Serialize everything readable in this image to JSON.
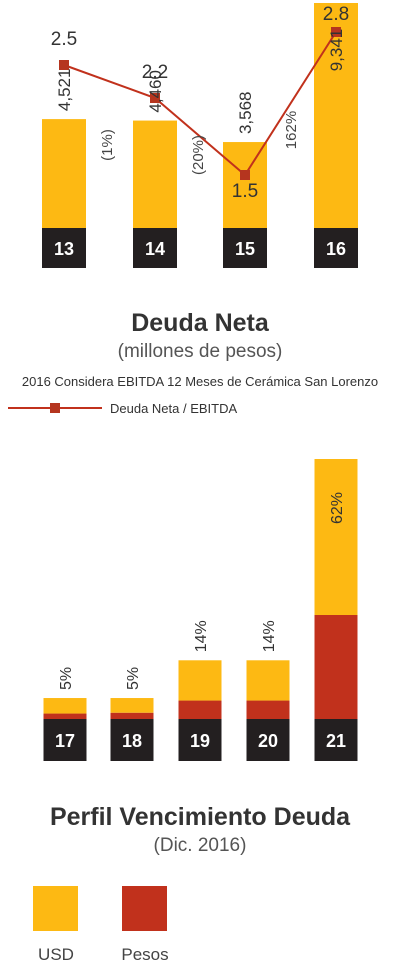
{
  "colors": {
    "usd": "#FDB913",
    "pesos": "#C1311C",
    "dark": "#231F20",
    "line": "#C1311C",
    "marker": "#B5351F",
    "text": "#333333"
  },
  "chart_data": [
    {
      "type": "bar",
      "title": "Deuda Neta",
      "subtitle": "(millones de pesos)",
      "note": "2016 Considera EBITDA 12 Meses de Cerámica San Lorenzo",
      "categories": [
        "13",
        "14",
        "15",
        "16"
      ],
      "values": [
        4521,
        4460,
        3568,
        9341
      ],
      "value_labels": [
        "4,521",
        "4,460",
        "3,568",
        "9,341"
      ],
      "change_labels": [
        "(1%)",
        "(20%)",
        "162%"
      ],
      "ylim": [
        0,
        9341
      ],
      "series": [
        {
          "name": "Deuda Neta / EBITDA",
          "type": "line",
          "values": [
            2.5,
            2.2,
            1.5,
            2.8
          ],
          "labels": [
            "2.5",
            "2.2",
            "1.5",
            "2.8"
          ]
        }
      ],
      "legend": {
        "position": "bottom",
        "label": "Deuda Neta / EBITDA"
      }
    },
    {
      "type": "bar",
      "stacked": true,
      "title": "Perfil Vencimiento Deuda",
      "subtitle": "(Dic. 2016)",
      "categories": [
        "17",
        "18",
        "19",
        "20",
        "21"
      ],
      "percent_labels": [
        "5%",
        "5%",
        "14%",
        "14%",
        "62%"
      ],
      "totals": [
        5,
        5,
        14,
        14,
        62
      ],
      "series": [
        {
          "name": "USD",
          "values": [
            3.7,
            3.5,
            9.6,
            9.6,
            37.2
          ]
        },
        {
          "name": "Pesos",
          "values": [
            1.3,
            1.5,
            4.4,
            4.4,
            24.8
          ]
        }
      ],
      "legend": {
        "position": "bottom",
        "labels": [
          "USD",
          "Pesos"
        ]
      }
    }
  ]
}
